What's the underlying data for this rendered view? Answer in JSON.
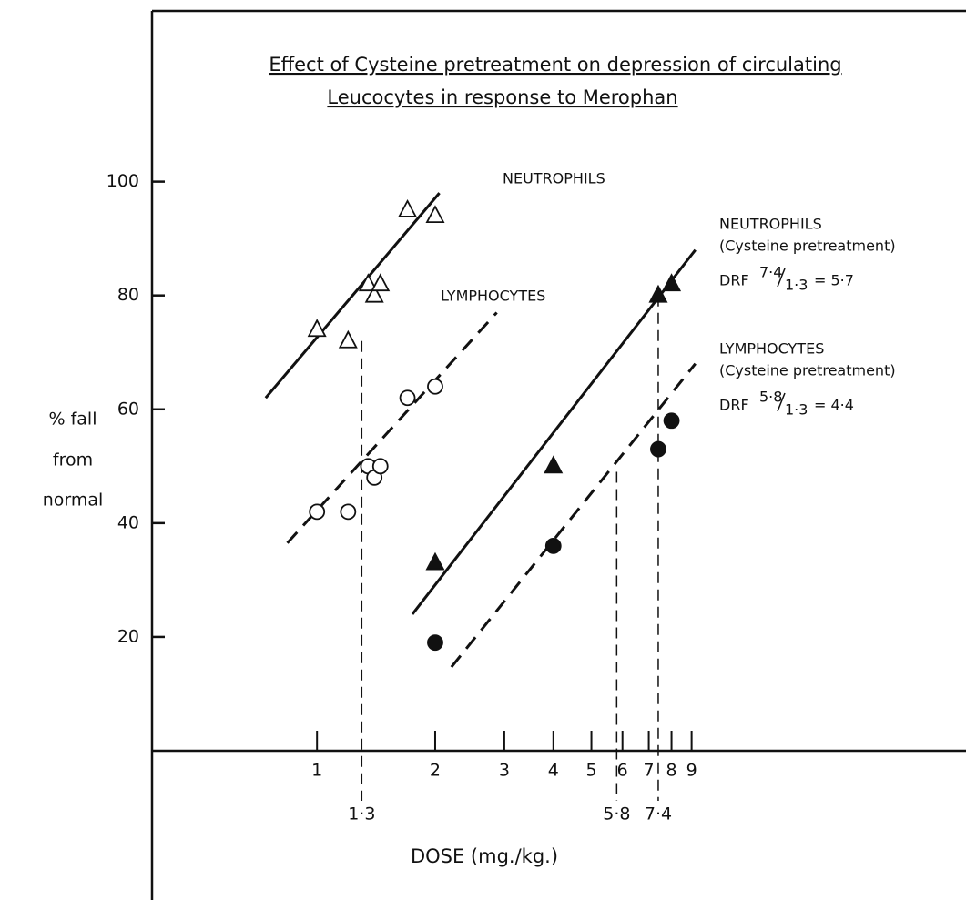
{
  "chart_data": {
    "type": "scatter",
    "title": [
      "Effect of Cysteine pretreatment on depression of circulating",
      "Leucocytes in response to Merophan"
    ],
    "xlabel": "DOSE (mg./kg.)",
    "ylabel": [
      "% fall",
      "from",
      "normal"
    ],
    "xscale": "log",
    "xlim": [
      0.38,
      45
    ],
    "ylim": [
      0,
      130
    ],
    "xticks": [
      1,
      2,
      3,
      4,
      5,
      6,
      7,
      8,
      9
    ],
    "yticks": [
      20,
      40,
      60,
      80,
      100
    ],
    "color": "#111111",
    "series": [
      {
        "name": "NEUTROPHILS",
        "marker": "triangle",
        "filled": false,
        "line": "solid",
        "x": [
          1,
          1.2,
          1.35,
          1.4,
          1.45,
          1.7,
          2
        ],
        "values": [
          74,
          72,
          82,
          80,
          82,
          95,
          94
        ],
        "fit": {
          "x": [
            0.74,
            2.05
          ],
          "values": [
            62,
            98
          ]
        }
      },
      {
        "name": "LYMPHOCYTES",
        "marker": "circle",
        "filled": false,
        "line": "dashed",
        "x": [
          1,
          1.2,
          1.35,
          1.4,
          1.45,
          1.7,
          2
        ],
        "values": [
          42,
          42,
          50,
          48,
          50,
          62,
          64
        ],
        "fit": {
          "x": [
            0.84,
            2.87
          ],
          "values": [
            36.5,
            77
          ]
        }
      },
      {
        "name": "NEUTROPHILS",
        "note": "(Cysteine pretreatment)",
        "marker": "triangle",
        "filled": true,
        "line": "solid",
        "x": [
          2,
          4,
          7.4,
          8
        ],
        "values": [
          33,
          50,
          80,
          82
        ],
        "fit": {
          "x": [
            1.75,
            9.2
          ],
          "values": [
            24,
            88
          ]
        },
        "drf": {
          "prefix": "DRF",
          "num": "7·4",
          "den": "1·3",
          "result": "= 5·7"
        }
      },
      {
        "name": "LYMPHOCYTES",
        "note": "(Cysteine pretreatment)",
        "marker": "circle",
        "filled": true,
        "line": "dashed",
        "x": [
          2,
          4,
          7.4,
          8
        ],
        "values": [
          19,
          36,
          53,
          58
        ],
        "fit": {
          "x": [
            2.2,
            9.2
          ],
          "values": [
            14.7,
            68
          ]
        },
        "drf": {
          "prefix": "DRF",
          "num": "5·8",
          "den": "1·3",
          "result": "= 4·4"
        }
      }
    ],
    "drop_lines": [
      {
        "x": 1.3,
        "top": 72,
        "label": "1·3"
      },
      {
        "x": 5.8,
        "top": 49,
        "label": "5·8"
      },
      {
        "x": 7.4,
        "top": 80,
        "label": "7·4"
      }
    ]
  }
}
